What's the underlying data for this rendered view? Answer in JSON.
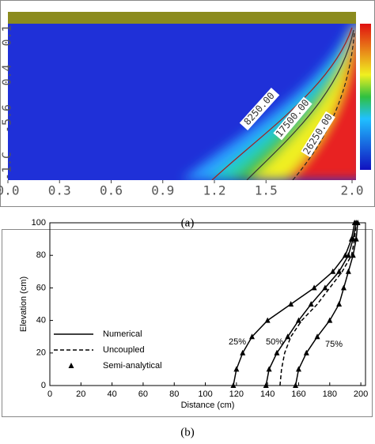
{
  "chart_data": [
    {
      "type": "contour",
      "caption": "(a)",
      "xlim": [
        0,
        2.0
      ],
      "xticks": [
        {
          "value": 0,
          "label": "0.0"
        },
        0.3,
        0.6,
        0.9,
        1.2,
        1.5,
        {
          "value": 2,
          "label": "2.0"
        }
      ],
      "y_labels": [
        "0.1",
        "0.4",
        "-5.6",
        "-1.C"
      ],
      "contour_labels": [
        "8250.00",
        "17500.00",
        "26250.00"
      ]
    },
    {
      "type": "line",
      "caption": "(b)",
      "xlabel": "Distance (cm)",
      "ylabel": "Elevation (cm)",
      "xlim": [
        0,
        203
      ],
      "ylim": [
        0,
        100
      ],
      "xticks": [
        0,
        20,
        40,
        60,
        80,
        100,
        120,
        140,
        160,
        180,
        200
      ],
      "yticks": [
        0,
        20,
        40,
        60,
        80,
        100
      ],
      "series": [
        {
          "name": "Numerical",
          "style": "solid",
          "color": "#000000",
          "curves": [
            {
              "label": "25%",
              "x": [
                118,
                120,
                124,
                130,
                140,
                155,
                170,
                182,
                190,
                194,
                196
              ],
              "y": [
                0,
                10,
                20,
                30,
                40,
                50,
                60,
                70,
                80,
                90,
                100
              ]
            },
            {
              "label": "50%",
              "x": [
                139,
                141,
                146,
                153,
                160,
                168,
                177,
                186,
                192,
                195,
                197
              ],
              "y": [
                0,
                10,
                20,
                30,
                40,
                50,
                60,
                70,
                80,
                90,
                100
              ]
            },
            {
              "label": "75%",
              "x": [
                158,
                160,
                165,
                172,
                180,
                186,
                189,
                192,
                195,
                197,
                198
              ],
              "y": [
                0,
                10,
                20,
                30,
                40,
                50,
                60,
                70,
                80,
                90,
                100
              ]
            }
          ]
        },
        {
          "name": "Uncoupled",
          "style": "dashed",
          "color": "#000000",
          "curves": [
            {
              "x": [
                148,
                149,
                151,
                155,
                162,
                172,
                180,
                188,
                194,
                196,
                197
              ],
              "y": [
                0,
                10,
                20,
                30,
                40,
                50,
                60,
                70,
                80,
                90,
                100
              ]
            }
          ]
        },
        {
          "name": "Semi-analytical",
          "style": "triangle",
          "color": "#000000",
          "curves": [
            {
              "x": [
                118,
                120,
                124,
                130,
                140,
                155,
                170,
                182,
                190,
                194,
                196
              ],
              "y": [
                0,
                10,
                20,
                30,
                40,
                50,
                60,
                70,
                80,
                90,
                100
              ]
            },
            {
              "x": [
                139,
                141,
                146,
                153,
                160,
                168,
                177,
                186,
                192,
                195,
                197
              ],
              "y": [
                0,
                10,
                20,
                30,
                40,
                50,
                60,
                70,
                80,
                90,
                100
              ]
            },
            {
              "x": [
                158,
                160,
                165,
                172,
                180,
                186,
                189,
                192,
                195,
                197,
                198
              ],
              "y": [
                0,
                10,
                20,
                30,
                40,
                50,
                60,
                70,
                80,
                90,
                100
              ]
            }
          ]
        }
      ]
    }
  ]
}
